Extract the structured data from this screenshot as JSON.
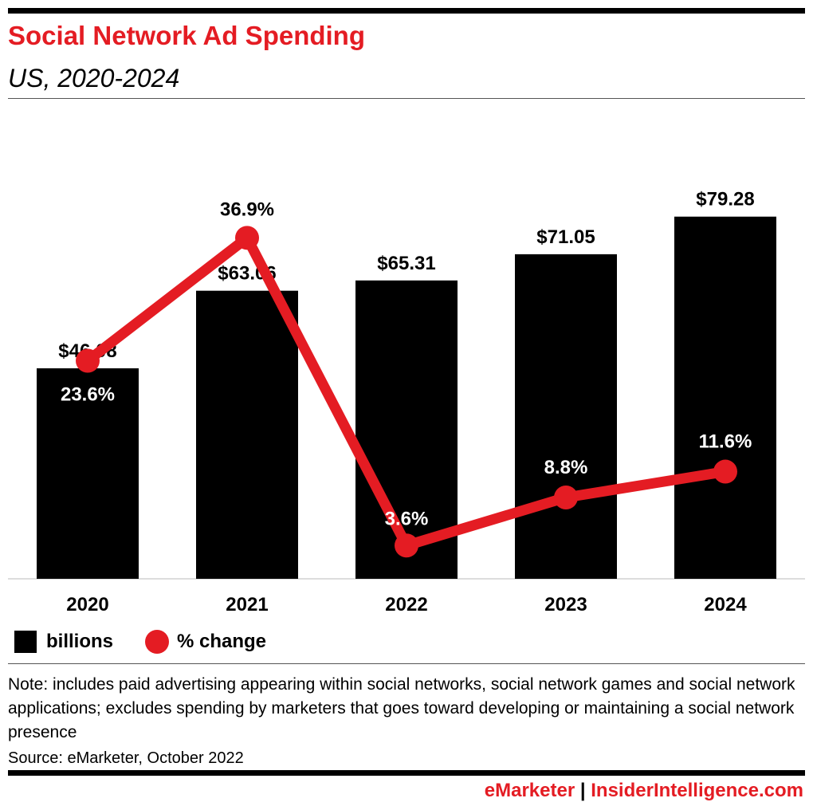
{
  "header": {
    "title": "Social Network Ad Spending",
    "subtitle": "US, 2020-2024"
  },
  "chart_data": {
    "type": "bar+line",
    "categories": [
      "2020",
      "2021",
      "2022",
      "2023",
      "2024"
    ],
    "series": [
      {
        "name": "billions",
        "type": "bar",
        "values": [
          46.08,
          63.06,
          65.31,
          71.05,
          79.28
        ],
        "labels": [
          "$46.08",
          "$63.06",
          "$65.31",
          "$71.05",
          "$79.28"
        ],
        "color": "#000000"
      },
      {
        "name": "% change",
        "type": "line",
        "values": [
          23.6,
          36.9,
          3.6,
          8.8,
          11.6
        ],
        "labels": [
          "23.6%",
          "36.9%",
          "3.6%",
          "8.8%",
          "11.6%"
        ],
        "color": "#e41c23"
      }
    ],
    "legend": "bottom-left"
  },
  "legend": {
    "bar": "billions",
    "line": "% change"
  },
  "note": "Note: includes paid advertising appearing within social networks, social network games and social network applications; excludes spending by marketers that goes toward developing or maintaining a social network presence",
  "source": "Source: eMarketer, October 2022",
  "footer": {
    "brand1": "eMarketer",
    "sep": " | ",
    "brand2": "InsiderIntelligence.com"
  }
}
